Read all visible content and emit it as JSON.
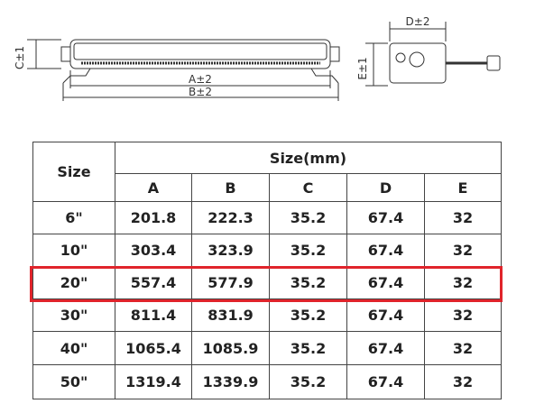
{
  "drawing": {
    "labels": {
      "c": "C±1",
      "a": "A±2",
      "b": "B±2",
      "d": "D±2",
      "e": "E±1"
    }
  },
  "table": {
    "header": {
      "size": "Size",
      "group": "Size(mm)",
      "columns": [
        "A",
        "B",
        "C",
        "D",
        "E"
      ]
    },
    "rows": [
      [
        "6\"",
        "201.8",
        "222.3",
        "35.2",
        "67.4",
        "32"
      ],
      [
        "10\"",
        "303.4",
        "323.9",
        "35.2",
        "67.4",
        "32"
      ],
      [
        "20\"",
        "557.4",
        "577.9",
        "35.2",
        "67.4",
        "32"
      ],
      [
        "30\"",
        "811.4",
        "831.9",
        "35.2",
        "67.4",
        "32"
      ],
      [
        "40\"",
        "1065.4",
        "1085.9",
        "35.2",
        "67.4",
        "32"
      ],
      [
        "50\"",
        "1319.4",
        "1339.9",
        "35.2",
        "67.4",
        "32"
      ]
    ]
  }
}
